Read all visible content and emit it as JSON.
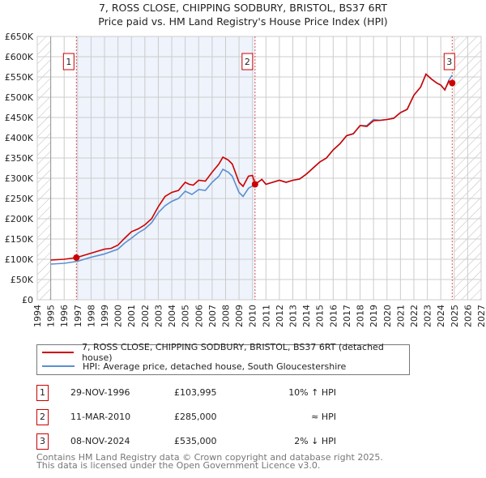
{
  "chart_data": {
    "type": "line",
    "title": "7, ROSS CLOSE, CHIPPING SODBURY, BRISTOL, BS37 6RT",
    "subtitle": "Price paid vs. HM Land Registry's House Price Index (HPI)",
    "xlabel": "",
    "ylabel": "",
    "xlim": [
      1994,
      2027
    ],
    "ylim": [
      0,
      650000
    ],
    "x_ticks": [
      "1994",
      "1995",
      "1996",
      "1997",
      "1998",
      "1999",
      "2000",
      "2001",
      "2002",
      "2003",
      "2004",
      "2005",
      "2006",
      "2007",
      "2008",
      "2009",
      "2010",
      "2011",
      "2012",
      "2013",
      "2014",
      "2015",
      "2016",
      "2017",
      "2018",
      "2019",
      "2020",
      "2021",
      "2022",
      "2023",
      "2024",
      "2025",
      "2026",
      "2027"
    ],
    "y_ticks": [
      {
        "v": 0,
        "label": "£0"
      },
      {
        "v": 50000,
        "label": "£50K"
      },
      {
        "v": 100000,
        "label": "£100K"
      },
      {
        "v": 150000,
        "label": "£150K"
      },
      {
        "v": 200000,
        "label": "£200K"
      },
      {
        "v": 250000,
        "label": "£250K"
      },
      {
        "v": 300000,
        "label": "£300K"
      },
      {
        "v": 350000,
        "label": "£350K"
      },
      {
        "v": 400000,
        "label": "£400K"
      },
      {
        "v": 450000,
        "label": "£450K"
      },
      {
        "v": 500000,
        "label": "£500K"
      },
      {
        "v": 550000,
        "label": "£550K"
      },
      {
        "v": 600000,
        "label": "£600K"
      },
      {
        "v": 650000,
        "label": "£650K"
      }
    ],
    "grid": true,
    "shaded_range": [
      1996.91,
      2010.19
    ],
    "hatched_ranges": [
      [
        1994,
        1995
      ],
      [
        2025,
        2027
      ]
    ],
    "colors": {
      "property": "#cc0000",
      "hpi": "#5b8fd0",
      "shade": "#eef3fc"
    },
    "series": [
      {
        "name": "7, ROSS CLOSE, CHIPPING SODBURY, BRISTOL, BS37 6RT (detached house)",
        "color": "#cc0000",
        "x": [
          1995,
          1996,
          1996.91,
          1997.5,
          1998,
          1998.5,
          1999,
          1999.5,
          2000,
          2000.5,
          2001,
          2001.5,
          2002,
          2002.5,
          2003,
          2003.5,
          2004,
          2004.5,
          2005,
          2005.3,
          2005.6,
          2006,
          2006.5,
          2007,
          2007.5,
          2007.8,
          2008.2,
          2008.5,
          2009,
          2009.3,
          2009.7,
          2010,
          2010.19,
          2010.7,
          2011,
          2011.5,
          2012,
          2012.5,
          2013,
          2013.5,
          2014,
          2014.5,
          2015,
          2015.5,
          2016,
          2016.5,
          2017,
          2017.5,
          2018,
          2018.5,
          2019,
          2019.5,
          2020,
          2020.5,
          2021,
          2021.5,
          2022,
          2022.5,
          2022.9,
          2023.3,
          2023.7,
          2024,
          2024.3,
          2024.6,
          2024.85
        ],
        "y": [
          98000,
          100000,
          104000,
          110000,
          115000,
          120000,
          125000,
          127000,
          135000,
          152000,
          168000,
          175000,
          185000,
          200000,
          230000,
          255000,
          265000,
          270000,
          290000,
          285000,
          283000,
          295000,
          293000,
          315000,
          335000,
          352000,
          345000,
          335000,
          290000,
          280000,
          305000,
          307000,
          285000,
          297000,
          285000,
          290000,
          295000,
          290000,
          295000,
          298000,
          310000,
          325000,
          340000,
          350000,
          370000,
          385000,
          405000,
          410000,
          430000,
          428000,
          442000,
          443000,
          445000,
          448000,
          462000,
          470000,
          505000,
          525000,
          557000,
          545000,
          535000,
          530000,
          518000,
          540000,
          535000
        ]
      },
      {
        "name": "HPI: Average price, detached house, South Gloucestershire",
        "color": "#5b8fd0",
        "x": [
          1995,
          1996,
          1997,
          1998,
          1999,
          2000,
          2000.5,
          2001,
          2001.5,
          2002,
          2002.5,
          2003,
          2003.5,
          2004,
          2004.5,
          2005,
          2005.5,
          2006,
          2006.5,
          2007,
          2007.5,
          2007.8,
          2008.2,
          2008.5,
          2009,
          2009.3,
          2009.7,
          2010.19,
          2010.7,
          2011,
          2011.5,
          2012,
          2012.5,
          2013,
          2013.5,
          2014,
          2014.5,
          2015,
          2015.5,
          2016,
          2016.5,
          2017,
          2017.5,
          2018,
          2018.5,
          2019,
          2019.5,
          2020,
          2020.5,
          2021,
          2021.5,
          2022,
          2022.5,
          2022.9,
          2023.3,
          2023.7,
          2024,
          2024.3,
          2024.6,
          2024.85
        ],
        "y": [
          88000,
          90000,
          95000,
          105000,
          113000,
          125000,
          140000,
          152000,
          165000,
          175000,
          190000,
          215000,
          232000,
          243000,
          250000,
          268000,
          260000,
          272000,
          270000,
          290000,
          305000,
          322000,
          315000,
          305000,
          265000,
          255000,
          275000,
          285000,
          297000,
          285000,
          290000,
          295000,
          290000,
          295000,
          298000,
          310000,
          325000,
          340000,
          350000,
          370000,
          385000,
          405000,
          410000,
          430000,
          430000,
          445000,
          443000,
          445000,
          448000,
          462000,
          470000,
          505000,
          525000,
          557000,
          545000,
          535000,
          530000,
          518000,
          542000,
          555000
        ]
      }
    ],
    "sales": [
      {
        "n": "1",
        "x": 1996.91,
        "y": 103995
      },
      {
        "n": "2",
        "x": 2010.19,
        "y": 285000
      },
      {
        "n": "3",
        "x": 2024.85,
        "y": 535000
      }
    ]
  },
  "legend": {
    "property": "7, ROSS CLOSE, CHIPPING SODBURY, BRISTOL, BS37 6RT (detached house)",
    "hpi": "HPI: Average price, detached house, South Gloucestershire"
  },
  "transactions": [
    {
      "n": "1",
      "date": "29-NOV-1996",
      "price": "£103,995",
      "hpi": "10% ↑ HPI"
    },
    {
      "n": "2",
      "date": "11-MAR-2010",
      "price": "£285,000",
      "hpi": "≈ HPI"
    },
    {
      "n": "3",
      "date": "08-NOV-2024",
      "price": "£535,000",
      "hpi": "2% ↓ HPI"
    }
  ],
  "footer": {
    "line1": "Contains HM Land Registry data © Crown copyright and database right 2025.",
    "line2": "This data is licensed under the Open Government Licence v3.0."
  }
}
